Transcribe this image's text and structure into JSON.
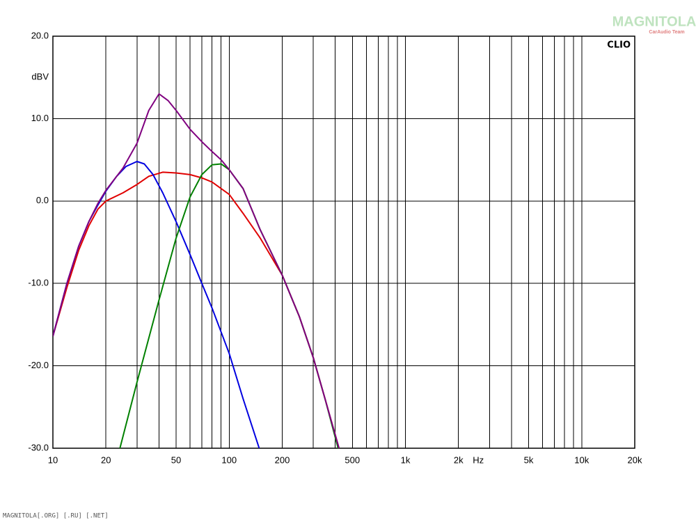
{
  "chart_data": {
    "type": "line",
    "brand": "CLIO",
    "watermark": "MAGNITOLA",
    "watermark_sub": "CarAudio Team",
    "footer": "MAGNITOLA[.ORG] [.RU] [.NET]",
    "xlabel": "Hz",
    "ylabel": "dBV",
    "xscale": "log",
    "grid": true,
    "xlim": [
      10,
      20000
    ],
    "ylim": [
      -30,
      20
    ],
    "xticks": [
      10,
      20,
      50,
      100,
      200,
      500,
      {
        "value": 1000,
        "label": "1k"
      },
      {
        "value": 2000,
        "label": "2k"
      },
      {
        "value": 5000,
        "label": "5k"
      },
      {
        "value": 10000,
        "label": "10k"
      },
      {
        "value": 20000,
        "label": "20k"
      }
    ],
    "xminor": [
      30,
      40,
      60,
      70,
      80,
      90,
      300,
      400,
      600,
      700,
      800,
      900,
      3000,
      4000,
      6000,
      7000,
      8000,
      9000
    ],
    "yticks": [
      {
        "value": -30,
        "label": "-30.0"
      },
      {
        "value": -20,
        "label": "-20.0"
      },
      {
        "value": -10,
        "label": "-10.0"
      },
      {
        "value": 0,
        "label": "0.0"
      },
      {
        "value": 10,
        "label": "10.0"
      },
      {
        "value": 20,
        "label": "20.0"
      }
    ],
    "series": [
      {
        "color": "#e00000",
        "x": [
          10,
          12,
          14,
          16,
          18,
          20,
          25,
          30,
          35,
          42,
          50,
          60,
          70,
          80,
          100,
          120,
          150,
          200,
          250,
          300,
          350,
          420
        ],
        "values": [
          -16.4,
          -10.5,
          -6,
          -3,
          -1,
          0,
          1,
          2,
          3,
          3.5,
          3.4,
          3.2,
          2.8,
          2.3,
          0.8,
          -1.5,
          -4.5,
          -9,
          -14,
          -19,
          -24,
          -30
        ]
      },
      {
        "color": "#0000e0",
        "x": [
          10,
          12,
          14,
          16,
          18,
          20,
          23,
          26,
          30,
          33,
          37,
          42,
          50,
          60,
          70,
          80,
          100,
          120,
          148
        ],
        "values": [
          -16.4,
          -10,
          -5.5,
          -2.5,
          -0.5,
          1.2,
          3,
          4.2,
          4.8,
          4.5,
          3.2,
          1,
          -2.5,
          -6.5,
          -10,
          -13,
          -18.5,
          -24,
          -30
        ]
      },
      {
        "color": "#008000",
        "x": [
          24,
          30,
          40,
          50,
          60,
          70,
          80,
          90,
          100,
          120,
          150,
          200,
          250,
          300,
          350,
          415
        ],
        "values": [
          -30,
          -22,
          -12,
          -4.5,
          0.5,
          3.2,
          4.4,
          4.5,
          3.8,
          1.5,
          -3.5,
          -9,
          -14,
          -19,
          -24,
          -30
        ]
      },
      {
        "color": "#800080",
        "x": [
          10,
          12,
          14,
          16,
          18,
          20,
          25,
          30,
          35,
          40,
          45,
          50,
          60,
          70,
          80,
          90,
          100,
          120,
          150,
          200,
          250,
          300,
          350,
          420
        ],
        "values": [
          -16.4,
          -10,
          -5.5,
          -2.5,
          -0.3,
          1.3,
          4,
          7,
          11,
          13,
          12.2,
          11,
          8.7,
          7.2,
          6,
          5,
          3.8,
          1.5,
          -3.5,
          -9,
          -14,
          -19,
          -24,
          -30
        ]
      }
    ]
  }
}
